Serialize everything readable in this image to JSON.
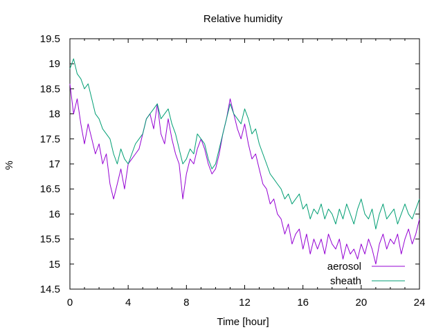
{
  "chart_data": {
    "type": "line",
    "title": "Relative humidity",
    "xlabel": "Time [hour]",
    "ylabel": "%",
    "xlim": [
      0,
      24
    ],
    "ylim": [
      14.5,
      19.5
    ],
    "xticks": [
      0,
      4,
      8,
      12,
      16,
      20,
      24
    ],
    "xtick_labels": [
      "0",
      "4",
      "8",
      "12",
      "16",
      "20",
      "24"
    ],
    "yticks": [
      14.5,
      15,
      15.5,
      16,
      16.5,
      17,
      17.5,
      18,
      18.5,
      19,
      19.5
    ],
    "ytick_labels": [
      "14.5",
      "15",
      "15.5",
      "16",
      "16.5",
      "17",
      "17.5",
      "18",
      "18.5",
      "19",
      "19.5"
    ],
    "grid": false,
    "legend_position": "bottom-right",
    "series": [
      {
        "name": "aerosol",
        "color": "#9400d3",
        "x": [
          0,
          0.25,
          0.5,
          0.75,
          1,
          1.25,
          1.5,
          1.75,
          2,
          2.25,
          2.5,
          2.75,
          3,
          3.25,
          3.5,
          3.75,
          4,
          4.25,
          4.5,
          4.75,
          5,
          5.25,
          5.5,
          5.75,
          6,
          6.25,
          6.5,
          6.75,
          7,
          7.25,
          7.5,
          7.75,
          8,
          8.25,
          8.5,
          8.75,
          9,
          9.25,
          9.5,
          9.75,
          10,
          10.25,
          10.5,
          10.75,
          11,
          11.25,
          11.5,
          11.75,
          12,
          12.25,
          12.5,
          12.75,
          13,
          13.25,
          13.5,
          13.75,
          14,
          14.25,
          14.5,
          14.75,
          15,
          15.25,
          15.5,
          15.75,
          16,
          16.25,
          16.5,
          16.75,
          17,
          17.25,
          17.5,
          17.75,
          18,
          18.25,
          18.5,
          18.75,
          19,
          19.25,
          19.5,
          19.75,
          20,
          20.25,
          20.5,
          20.75,
          21,
          21.25,
          21.5,
          21.75,
          22,
          22.25,
          22.5,
          22.75,
          23,
          23.25,
          23.5,
          23.75,
          24
        ],
        "y": [
          18.6,
          18.0,
          18.3,
          17.8,
          17.4,
          17.8,
          17.5,
          17.2,
          17.4,
          17.0,
          17.2,
          16.6,
          16.3,
          16.6,
          16.9,
          16.5,
          17.0,
          17.1,
          17.2,
          17.3,
          17.6,
          17.9,
          18.0,
          17.7,
          18.2,
          17.6,
          17.4,
          17.9,
          17.5,
          17.2,
          17.0,
          16.3,
          16.8,
          17.1,
          17.0,
          17.3,
          17.5,
          17.3,
          17.0,
          16.8,
          16.9,
          17.2,
          17.6,
          17.9,
          18.3,
          18.0,
          17.7,
          17.5,
          17.8,
          17.4,
          17.1,
          17.2,
          16.9,
          16.6,
          16.5,
          16.2,
          16.3,
          16.0,
          15.9,
          15.6,
          15.8,
          15.4,
          15.6,
          15.7,
          15.3,
          15.6,
          15.2,
          15.5,
          15.3,
          15.5,
          15.2,
          15.6,
          15.4,
          15.3,
          15.5,
          15.1,
          15.4,
          15.2,
          15.3,
          15.1,
          15.4,
          15.2,
          15.5,
          15.3,
          15.0,
          15.4,
          15.6,
          15.3,
          15.5,
          15.4,
          15.6,
          15.2,
          15.5,
          15.7,
          15.4,
          15.6,
          15.9
        ]
      },
      {
        "name": "sheath",
        "color": "#009e73",
        "x": [
          0,
          0.25,
          0.5,
          0.75,
          1,
          1.25,
          1.5,
          1.75,
          2,
          2.25,
          2.5,
          2.75,
          3,
          3.25,
          3.5,
          3.75,
          4,
          4.25,
          4.5,
          4.75,
          5,
          5.25,
          5.5,
          5.75,
          6,
          6.25,
          6.5,
          6.75,
          7,
          7.25,
          7.5,
          7.75,
          8,
          8.25,
          8.5,
          8.75,
          9,
          9.25,
          9.5,
          9.75,
          10,
          10.25,
          10.5,
          10.75,
          11,
          11.25,
          11.5,
          11.75,
          12,
          12.25,
          12.5,
          12.75,
          13,
          13.25,
          13.5,
          13.75,
          14,
          14.25,
          14.5,
          14.75,
          15,
          15.25,
          15.5,
          15.75,
          16,
          16.25,
          16.5,
          16.75,
          17,
          17.25,
          17.5,
          17.75,
          18,
          18.25,
          18.5,
          18.75,
          19,
          19.25,
          19.5,
          19.75,
          20,
          20.25,
          20.5,
          20.75,
          21,
          21.25,
          21.5,
          21.75,
          22,
          22.25,
          22.5,
          22.75,
          23,
          23.25,
          23.5,
          23.75,
          24
        ],
        "y": [
          18.9,
          19.1,
          18.8,
          18.7,
          18.5,
          18.6,
          18.3,
          18.0,
          17.9,
          17.7,
          17.6,
          17.5,
          17.2,
          17.0,
          17.3,
          17.1,
          17.0,
          17.2,
          17.4,
          17.5,
          17.6,
          17.9,
          18.0,
          18.1,
          18.2,
          17.9,
          18.0,
          18.1,
          17.8,
          17.6,
          17.3,
          17.0,
          17.1,
          17.3,
          17.2,
          17.6,
          17.5,
          17.4,
          17.1,
          16.9,
          17.0,
          17.3,
          17.6,
          17.9,
          18.2,
          18.0,
          17.9,
          17.8,
          18.1,
          17.9,
          17.6,
          17.7,
          17.4,
          17.2,
          17.0,
          16.8,
          16.7,
          16.6,
          16.5,
          16.3,
          16.4,
          16.2,
          16.3,
          16.4,
          16.1,
          16.2,
          15.9,
          16.1,
          16.0,
          16.2,
          15.9,
          16.1,
          16.0,
          15.8,
          16.1,
          15.9,
          16.2,
          16.0,
          15.8,
          16.1,
          16.3,
          16.0,
          15.9,
          16.1,
          15.7,
          16.0,
          16.2,
          15.9,
          16.0,
          16.1,
          15.8,
          16.0,
          16.2,
          16.0,
          15.9,
          16.1,
          16.3
        ]
      }
    ]
  }
}
